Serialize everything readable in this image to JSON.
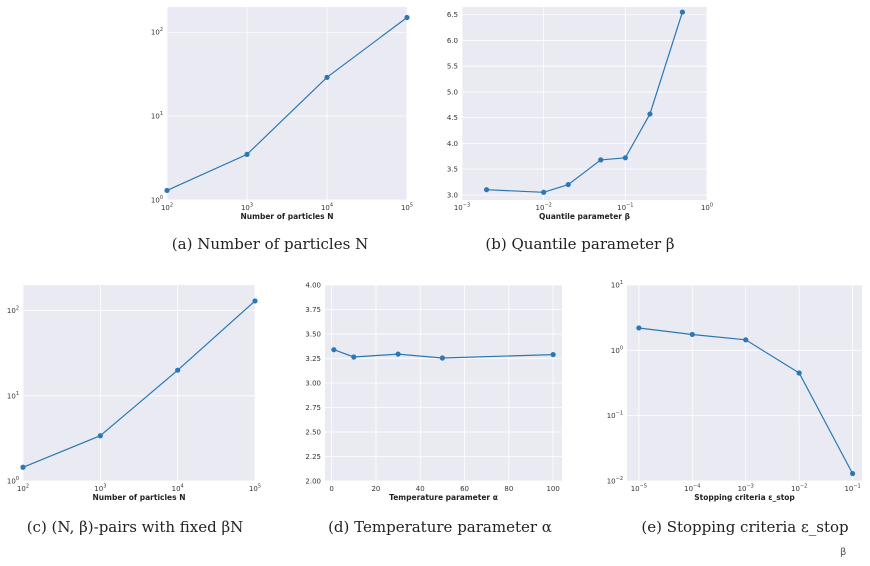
{
  "chart_data": [
    {
      "id": "a",
      "type": "line",
      "caption": "(a) Number of particles N",
      "xlabel": "Number of particles N",
      "ylabel": "",
      "xscale": "log",
      "yscale": "log",
      "xlim": [
        100,
        100000
      ],
      "ylim": [
        1,
        200
      ],
      "xticks": [
        {
          "base": "10",
          "exp": "2",
          "v": 100
        },
        {
          "base": "10",
          "exp": "3",
          "v": 1000
        },
        {
          "base": "10",
          "exp": "4",
          "v": 10000
        },
        {
          "base": "10",
          "exp": "5",
          "v": 100000
        }
      ],
      "yticks": [
        {
          "base": "10",
          "exp": "0",
          "v": 1
        },
        {
          "base": "10",
          "exp": "1",
          "v": 10
        },
        {
          "base": "10",
          "exp": "2",
          "v": 100
        }
      ],
      "grid": true,
      "x": [
        100,
        1000,
        10000,
        100000
      ],
      "y": [
        1.3,
        3.5,
        29,
        150
      ]
    },
    {
      "id": "b",
      "type": "line",
      "caption": "(b) Quantile parameter β",
      "xlabel": "Quantile parameter β",
      "ylabel": "",
      "xscale": "log",
      "yscale": "linear",
      "xlim": [
        0.001,
        1
      ],
      "ylim": [
        2.9,
        6.65
      ],
      "xticks": [
        {
          "base": "10",
          "exp": "−3",
          "v": 0.001
        },
        {
          "base": "10",
          "exp": "−2",
          "v": 0.01
        },
        {
          "base": "10",
          "exp": "−1",
          "v": 0.1
        },
        {
          "base": "10",
          "exp": "0",
          "v": 1
        }
      ],
      "yticks": [
        {
          "label": "3.0",
          "v": 3.0
        },
        {
          "label": "3.5",
          "v": 3.5
        },
        {
          "label": "4.0",
          "v": 4.0
        },
        {
          "label": "4.5",
          "v": 4.5
        },
        {
          "label": "5.0",
          "v": 5.0
        },
        {
          "label": "5.5",
          "v": 5.5
        },
        {
          "label": "6.0",
          "v": 6.0
        },
        {
          "label": "6.5",
          "v": 6.5
        }
      ],
      "grid": true,
      "x": [
        0.002,
        0.01,
        0.02,
        0.05,
        0.1,
        0.2,
        0.5
      ],
      "y": [
        3.1,
        3.05,
        3.2,
        3.68,
        3.72,
        4.57,
        6.55
      ]
    },
    {
      "id": "c",
      "type": "line",
      "caption": "(c) (N, β)-pairs with fixed βN",
      "xlabel": "Number of particles N",
      "ylabel": "",
      "xscale": "log",
      "yscale": "log",
      "xlim": [
        100,
        100000
      ],
      "ylim": [
        1,
        200
      ],
      "xticks": [
        {
          "base": "10",
          "exp": "2",
          "v": 100
        },
        {
          "base": "10",
          "exp": "3",
          "v": 1000
        },
        {
          "base": "10",
          "exp": "4",
          "v": 10000
        },
        {
          "base": "10",
          "exp": "5",
          "v": 100000
        }
      ],
      "yticks": [
        {
          "base": "10",
          "exp": "0",
          "v": 1
        },
        {
          "base": "10",
          "exp": "1",
          "v": 10
        },
        {
          "base": "10",
          "exp": "2",
          "v": 100
        }
      ],
      "grid": true,
      "x": [
        100,
        1000,
        10000,
        100000
      ],
      "y": [
        1.45,
        3.4,
        20,
        130
      ]
    },
    {
      "id": "d",
      "type": "line",
      "caption": "(d) Temperature parameter α",
      "xlabel": "Temperature parameter α",
      "ylabel": "",
      "xscale": "linear",
      "yscale": "linear",
      "xlim": [
        -3,
        104
      ],
      "ylim": [
        2.0,
        4.0
      ],
      "xticks": [
        {
          "label": "0",
          "v": 0
        },
        {
          "label": "20",
          "v": 20
        },
        {
          "label": "40",
          "v": 40
        },
        {
          "label": "60",
          "v": 60
        },
        {
          "label": "80",
          "v": 80
        },
        {
          "label": "100",
          "v": 100
        }
      ],
      "yticks": [
        {
          "label": "2.00",
          "v": 2.0
        },
        {
          "label": "2.25",
          "v": 2.25
        },
        {
          "label": "2.50",
          "v": 2.5
        },
        {
          "label": "2.75",
          "v": 2.75
        },
        {
          "label": "3.00",
          "v": 3.0
        },
        {
          "label": "3.25",
          "v": 3.25
        },
        {
          "label": "3.50",
          "v": 3.5
        },
        {
          "label": "3.75",
          "v": 3.75
        },
        {
          "label": "4.00",
          "v": 4.0
        }
      ],
      "grid": true,
      "x": [
        1,
        10,
        30,
        50,
        100
      ],
      "y": [
        3.34,
        3.265,
        3.295,
        3.255,
        3.29
      ]
    },
    {
      "id": "e",
      "type": "line",
      "caption": "(e) Stopping criteria ε_stop",
      "xlabel": "Stopping criteria ε_stop",
      "ylabel": "",
      "xscale": "log",
      "yscale": "log",
      "xlim": [
        6e-06,
        0.15
      ],
      "ylim": [
        0.01,
        10
      ],
      "xticks": [
        {
          "base": "10",
          "exp": "−5",
          "v": 1e-05
        },
        {
          "base": "10",
          "exp": "−4",
          "v": 0.0001
        },
        {
          "base": "10",
          "exp": "−3",
          "v": 0.001
        },
        {
          "base": "10",
          "exp": "−2",
          "v": 0.01
        },
        {
          "base": "10",
          "exp": "−1",
          "v": 0.1
        }
      ],
      "yticks": [
        {
          "base": "10",
          "exp": "−2",
          "v": 0.01
        },
        {
          "base": "10",
          "exp": "−1",
          "v": 0.1
        },
        {
          "base": "10",
          "exp": "0",
          "v": 1
        },
        {
          "base": "10",
          "exp": "1",
          "v": 10
        }
      ],
      "grid": true,
      "x": [
        1e-05,
        0.0001,
        0.001,
        0.01,
        0.1
      ],
      "y": [
        2.2,
        1.75,
        1.45,
        0.45,
        0.013
      ]
    }
  ],
  "colors": {
    "series": "#2b78b4",
    "panel_bg": "#eaeaf2",
    "grid": "#ffffff"
  },
  "cut_off_label": {
    "text": "β"
  }
}
